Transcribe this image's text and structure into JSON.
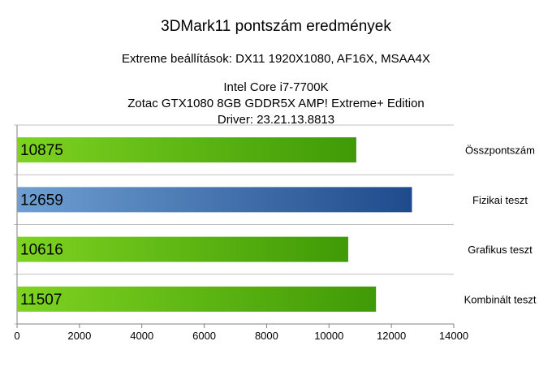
{
  "chart_data": {
    "type": "bar",
    "orientation": "horizontal",
    "title": "3DMark11 pontszám eredmények",
    "subtitle": "Extreme beállítások: DX11 1920X1080, AF16X, MSAA4X",
    "info_lines": [
      "Intel Core i7-7700K",
      "Zotac GTX1080 8GB GDDR5X AMP! Extreme+ Edition",
      "Driver: 23.21.13.8813"
    ],
    "categories": [
      "Összpontszám",
      "Fizikai teszt",
      "Grafikus teszt",
      "Kombinált teszt"
    ],
    "values": [
      10875,
      12659,
      10616,
      11507
    ],
    "data_labels": [
      "10875",
      "12659",
      "10616",
      "11507"
    ],
    "bar_colors": [
      "green",
      "blue",
      "green",
      "green"
    ],
    "xlim": [
      0,
      14000
    ],
    "x_ticks": [
      "0",
      "2000",
      "4000",
      "6000",
      "8000",
      "10000",
      "12000",
      "14000"
    ],
    "grid": true,
    "category_labels_position": "right"
  },
  "colors": {
    "green_light": "#7ed321",
    "green_dark": "#3f9a06",
    "blue_light": "#6f9fd2",
    "blue_dark": "#1f4a8c",
    "grid": "#c0c0c0",
    "axis": "#808080"
  }
}
